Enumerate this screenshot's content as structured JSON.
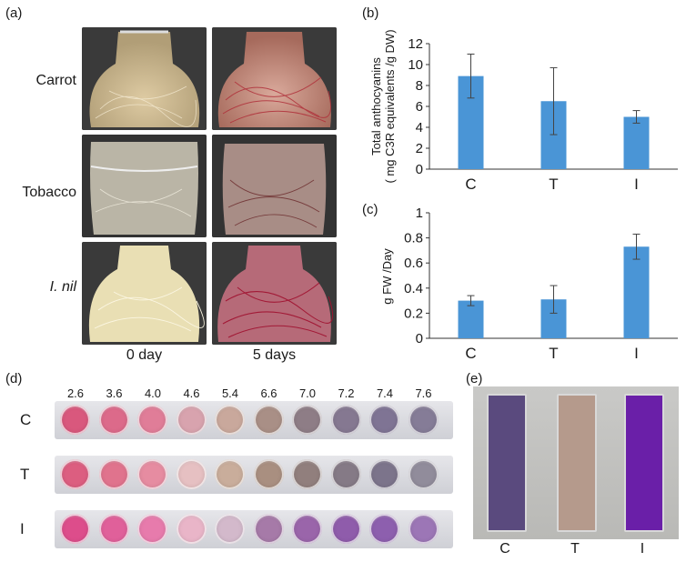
{
  "panels": {
    "a": {
      "label": "(a)",
      "rows": [
        "Carrot",
        "Tobacco",
        "I. nil"
      ],
      "columns": [
        "0 day",
        "5 days"
      ]
    },
    "b": {
      "label": "(b)"
    },
    "c": {
      "label": "(c)"
    },
    "d": {
      "label": "(d)",
      "ph_values": [
        "2.6",
        "3.6",
        "4.0",
        "4.6",
        "5.4",
        "6.6",
        "7.0",
        "7.2",
        "7.4",
        "7.6"
      ],
      "rows": [
        "C",
        "T",
        "I"
      ]
    },
    "e": {
      "label": "(e)",
      "cuvettes": [
        "C",
        "T",
        "I"
      ]
    }
  },
  "colors": {
    "bar": "#4a95d6",
    "cuvette_C": "#5a4a7e",
    "cuvette_T": "#b59a8c",
    "cuvette_I": "#6a1fa8"
  },
  "chart_data": [
    {
      "panel": "b",
      "type": "bar",
      "categories": [
        "C",
        "T",
        "I"
      ],
      "values": [
        8.9,
        6.5,
        5.0
      ],
      "errors": [
        2.1,
        3.2,
        0.6
      ],
      "title": "",
      "xlabel": "",
      "ylabel": "Total anthocyanins ( mg C3R equivalents /g DW)",
      "ylim": [
        0,
        12
      ],
      "yticks": [
        "0",
        "2",
        "4",
        "6",
        "8",
        "10",
        "12"
      ],
      "grid": false
    },
    {
      "panel": "c",
      "type": "bar",
      "categories": [
        "C",
        "T",
        "I"
      ],
      "values": [
        0.3,
        0.31,
        0.73
      ],
      "errors": [
        0.04,
        0.11,
        0.1
      ],
      "title": "",
      "xlabel": "",
      "ylabel": "g FW /Day",
      "ylim": [
        0,
        1
      ],
      "yticks": [
        "0",
        "0.2",
        "0.4",
        "0.6",
        "0.8",
        "1"
      ],
      "grid": false
    }
  ]
}
